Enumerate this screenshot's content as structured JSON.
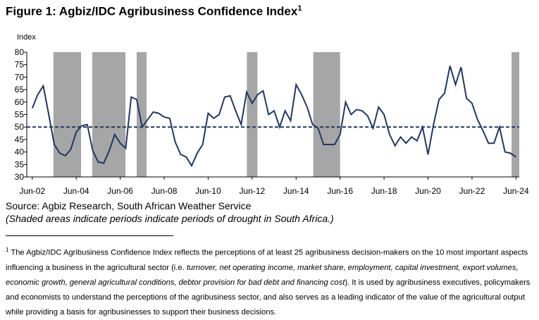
{
  "chart_data": {
    "type": "line",
    "title": "Figure 1: Agbiz/IDC Agribusiness Confidence Index",
    "title_footnote_marker": "1",
    "y_axis_label": "Index",
    "x": [
      2002.5,
      2002.75,
      2003,
      2003.25,
      2003.5,
      2003.75,
      2004,
      2004.25,
      2004.5,
      2004.75,
      2005,
      2005.25,
      2005.5,
      2005.75,
      2006,
      2006.25,
      2006.5,
      2006.75,
      2007,
      2007.25,
      2007.5,
      2007.75,
      2008,
      2008.25,
      2008.5,
      2008.75,
      2009,
      2009.25,
      2009.5,
      2009.75,
      2010,
      2010.25,
      2010.5,
      2010.75,
      2011,
      2011.25,
      2011.5,
      2011.75,
      2012,
      2012.25,
      2012.5,
      2012.75,
      2013,
      2013.25,
      2013.5,
      2013.75,
      2014,
      2014.25,
      2014.5,
      2014.75,
      2015,
      2015.25,
      2015.5,
      2015.75,
      2016,
      2016.25,
      2016.5,
      2016.75,
      2017,
      2017.25,
      2017.5,
      2017.75,
      2018,
      2018.25,
      2018.5,
      2018.75,
      2019,
      2019.25,
      2019.5,
      2019.75,
      2020,
      2020.25,
      2020.5,
      2020.75,
      2021,
      2021.25,
      2021.5,
      2021.75,
      2022,
      2022.25,
      2022.5,
      2022.75,
      2023,
      2023.25,
      2023.5,
      2023.75,
      2024,
      2024.25,
      2024.5
    ],
    "series": [
      {
        "name": "Agbiz/IDC Agribusiness Confidence Index",
        "color": "#1f3864",
        "values": [
          57.5,
          63,
          66.5,
          55,
          43,
          39.5,
          38.5,
          41,
          48,
          50.5,
          51,
          40.5,
          36,
          35.5,
          40.5,
          47,
          43.5,
          41.5,
          62,
          61,
          50,
          53,
          56,
          55.5,
          54,
          53.5,
          44,
          39,
          38,
          34.5,
          39.5,
          43,
          55.5,
          53.5,
          55,
          62,
          62.5,
          56.5,
          51,
          64,
          59.5,
          63,
          64.5,
          55,
          56.5,
          50,
          56.5,
          52.5,
          67,
          63,
          58,
          51,
          49.5,
          43,
          43,
          43,
          47,
          60,
          55,
          57,
          56.5,
          54.5,
          49.5,
          58,
          55,
          47,
          42.5,
          46,
          43.5,
          46,
          44.5,
          50,
          39,
          51,
          61,
          63.5,
          74.5,
          67,
          74,
          61.5,
          59.5,
          53,
          48.5,
          43.5,
          43.5,
          50,
          40,
          39.5,
          38
        ]
      }
    ],
    "reference_line": 50,
    "shaded_periods": [
      [
        2003.46,
        2004.72
      ],
      [
        2005.23,
        2006.74
      ],
      [
        2007.25,
        2007.7
      ],
      [
        2012.26,
        2012.74
      ],
      [
        2015.28,
        2016.5
      ],
      [
        2024.3,
        2024.65
      ]
    ],
    "shade_color": "#a6a6a6",
    "xlim": [
      2002.25,
      2024.65
    ],
    "xticks": [
      {
        "value": 2002.5,
        "label": "Jun-02"
      },
      {
        "value": 2004.5,
        "label": "Jun-04"
      },
      {
        "value": 2006.5,
        "label": "Jun-06"
      },
      {
        "value": 2008.5,
        "label": "Jun-08"
      },
      {
        "value": 2010.5,
        "label": "Jun-10"
      },
      {
        "value": 2012.5,
        "label": "Jun-12"
      },
      {
        "value": 2014.5,
        "label": "Jun-14"
      },
      {
        "value": 2016.5,
        "label": "Jun-16"
      },
      {
        "value": 2018.5,
        "label": "Jun-18"
      },
      {
        "value": 2020.5,
        "label": "Jun-20"
      },
      {
        "value": 2022.5,
        "label": "Jun-22"
      },
      {
        "value": 2024.5,
        "label": "Jun-24"
      }
    ],
    "ylim": [
      30,
      80
    ],
    "yticks": [
      30,
      35,
      40,
      45,
      50,
      55,
      60,
      65,
      70,
      75,
      80
    ],
    "source": "Source: Agbiz Research, South African Weather Service",
    "note": "(Shaded areas indicate periods indicate periods of drought in South Africa.)"
  },
  "footnote": {
    "marker": "1",
    "parts": [
      "The Agbiz/IDC Agribusiness Confidence Index reflects the perceptions of at least 25 agribusiness decision-makers on the 10 most important aspects influencing a business in the agricultural sector (i.e. ",
      "turnover, net operating income, market share, employment, capital investment, export volumes, economic growth, general agricultural conditions, debtor provision for bad debt and financing cost",
      "). It is used by agribusiness executives, policymakers and economists to understand the perceptions of the agribusiness sector, and also serves as a leading indicator of the value of the agricultural output while providing a basis for agribusinesses to support their business decisions."
    ]
  }
}
